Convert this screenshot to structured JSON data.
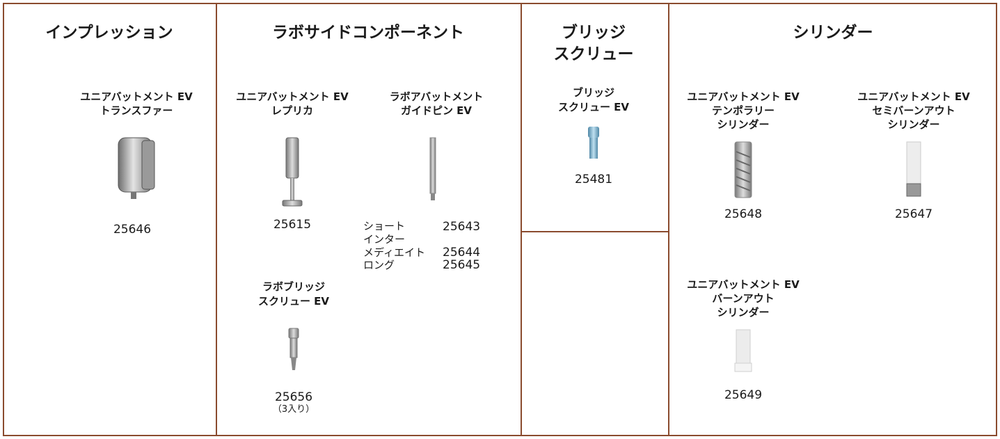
{
  "columns": [
    {
      "title_lines": [
        "インプレッション"
      ],
      "products": [
        {
          "name_lines": [
            "ユニアバットメント EV",
            "トランスファー"
          ],
          "code": "25646"
        }
      ]
    },
    {
      "title_lines": [
        "ラボサイドコンポーネント"
      ],
      "products": [
        {
          "name_lines": [
            "ユニアバットメント EV",
            "レプリカ"
          ],
          "code": "25615"
        },
        {
          "name_lines": [
            "ラボアバットメント",
            "ガイドピン EV"
          ],
          "variants": [
            {
              "label_lines": [
                "ショート"
              ],
              "code": "25643"
            },
            {
              "label_lines": [
                "インター",
                "メディエイト"
              ],
              "code": "25644"
            },
            {
              "label_lines": [
                "ロング"
              ],
              "code": "25645"
            }
          ]
        },
        {
          "name_lines": [
            "ラボブリッジ",
            "スクリュー EV"
          ],
          "code": "25656",
          "note": "（3入り）"
        }
      ]
    },
    {
      "title_lines": [
        "ブリッジ",
        "スクリュー"
      ],
      "products": [
        {
          "name_lines": [
            "ブリッジ",
            "スクリュー EV"
          ],
          "code": "25481"
        }
      ]
    },
    {
      "title_lines": [
        "シリンダー"
      ],
      "products": [
        {
          "name_lines": [
            "ユニアバットメント EV",
            "テンポラリー",
            "シリンダー"
          ],
          "code": "25648"
        },
        {
          "name_lines": [
            "ユニアバットメント EV",
            "セミバーンアウト",
            "シリンダー"
          ],
          "code": "25647"
        },
        {
          "name_lines": [
            "ユニアバットメント EV",
            "バーンアウト",
            "シリンダー"
          ],
          "code": "25649"
        }
      ]
    }
  ]
}
